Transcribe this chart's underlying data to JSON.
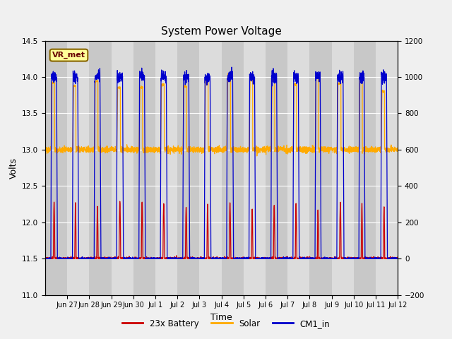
{
  "title": "System Power Voltage",
  "xlabel": "Time",
  "ylabel_left": "Volts",
  "ylim_left": [
    11.0,
    14.5
  ],
  "ylim_right": [
    -200,
    1200
  ],
  "left_yticks": [
    11.0,
    11.5,
    12.0,
    12.5,
    13.0,
    13.5,
    14.0,
    14.5
  ],
  "right_yticks": [
    -200,
    0,
    200,
    400,
    600,
    800,
    1000,
    1200
  ],
  "x_tick_labels": [
    "Jun 27",
    "Jun 28",
    "Jun 29",
    "Jun 30",
    "Jul 1",
    "Jul 2",
    "Jul 3",
    "Jul 4",
    "Jul 5",
    "Jul 6",
    "Jul 7",
    "Jul 8",
    "Jul 9",
    "Jul 10",
    "Jul 11",
    "Jul 12"
  ],
  "x_tick_positions": [
    1,
    2,
    3,
    4,
    5,
    6,
    7,
    8,
    9,
    10,
    11,
    12,
    13,
    14,
    15,
    16
  ],
  "color_battery": "#cc0000",
  "color_solar": "#ffaa00",
  "color_cm1": "#0000cc",
  "legend_labels": [
    "23x Battery",
    "Solar",
    "CM1_in"
  ],
  "annotation_text": "VR_met",
  "bg_stripe_light": "#dcdcdc",
  "bg_stripe_dark": "#c8c8c8",
  "grid_color": "#ffffff",
  "plot_bg": "#d8d8d8",
  "fig_bg": "#f0f0f0",
  "xlim": [
    0,
    16
  ],
  "n_days": 16,
  "pts_per_day": 200
}
